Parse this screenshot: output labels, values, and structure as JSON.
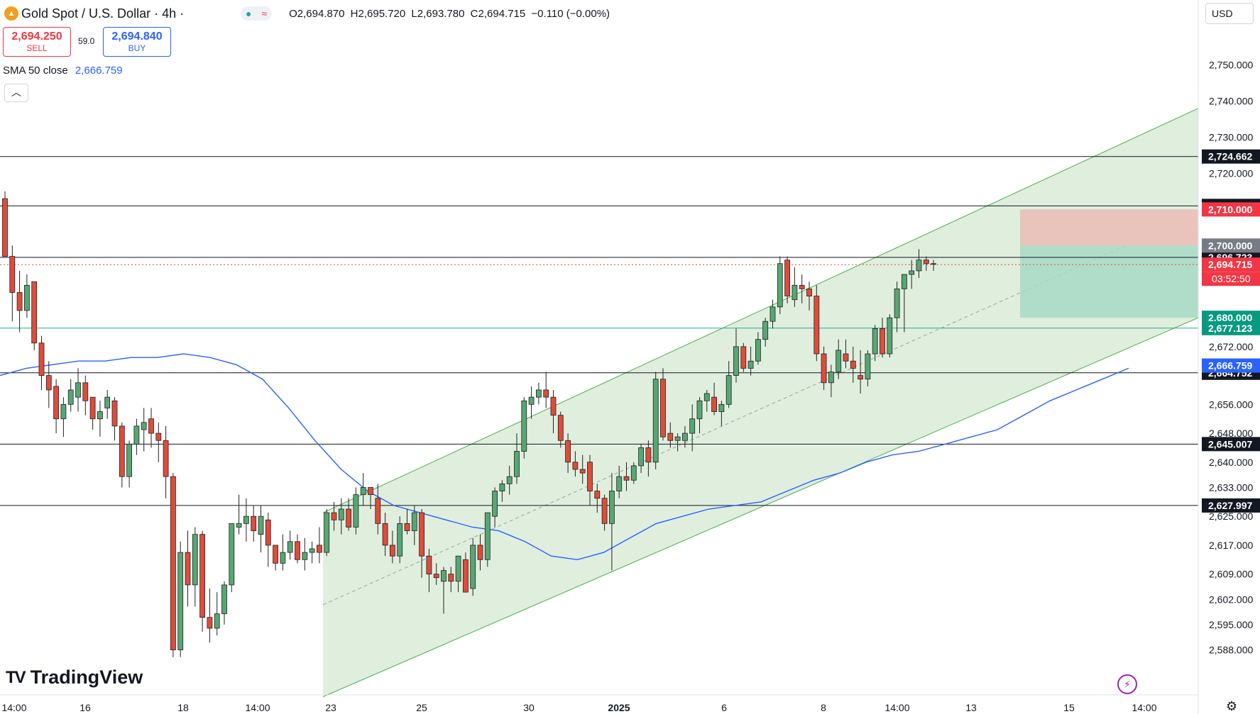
{
  "header": {
    "symbol_title": "Gold Spot / U.S. Dollar · 4h ·",
    "ohlc": {
      "o": "O2,694.870",
      "h": "H2,695.720",
      "l": "L2,693.780",
      "c": "C2,694.715",
      "chg": "−0.110 (−0.00%)"
    },
    "sell_price": "2,694.250",
    "sell_label": "SELL",
    "buy_price": "2,694.840",
    "buy_label": "BUY",
    "spread": "59.0",
    "indicator_label": "SMA 50 close",
    "indicator_value": "2,666.759",
    "currency": "USD",
    "brand": "TradingView",
    "brand_mark": "TV"
  },
  "colors": {
    "up": "#57a773",
    "down": "#e04b3a",
    "sma": "#2962ff",
    "channel_fill": "#d8ead6",
    "channel_line": "#4caf50",
    "stop_zone": "#e8c4bc",
    "target_zone": "#a6d9c6"
  },
  "chart_data": {
    "type": "candlestick",
    "timeframe": "4h",
    "y_axis": {
      "range": [
        2585,
        2760
      ],
      "ticks": [
        "2,588.000",
        "2,595.000",
        "2,602.000",
        "2,609.000",
        "2,617.000",
        "2,625.000",
        "2,633.000",
        "2,640.000",
        "2,648.000",
        "2,656.000",
        "2,672.000",
        "2,720.000",
        "2,730.000",
        "2,740.000",
        "2,750.000"
      ]
    },
    "x_axis": {
      "labels": [
        "14:00",
        "16",
        "18",
        "14:00",
        "23",
        "25",
        "30",
        "2025",
        "6",
        "8",
        "14:00",
        "13",
        "15",
        "14:00"
      ]
    },
    "horizontal_levels": [
      {
        "value": 2724.662,
        "label": "2,724.662"
      },
      {
        "value": 2710.986,
        "label": "2,710.986"
      },
      {
        "value": 2696.723,
        "label": "2,696.723"
      },
      {
        "value": 2664.752,
        "label": "2,664.752"
      },
      {
        "value": 2645.007,
        "label": "2,645.007"
      },
      {
        "value": 2627.997,
        "label": "2,627.997"
      }
    ],
    "marker_labels": [
      {
        "value": 2710.0,
        "label": "2,710.000",
        "style": "stop"
      },
      {
        "value": 2700.0,
        "label": "2,700.000",
        "style": "entry"
      },
      {
        "value": 2694.715,
        "label": "2,694.715",
        "style": "price",
        "countdown": "03:52:50"
      },
      {
        "value": 2680.0,
        "label": "2,680.000",
        "style": "target"
      },
      {
        "value": 2677.123,
        "label": "2,677.123",
        "style": "target"
      },
      {
        "value": 2666.759,
        "label": "2,666.759",
        "style": "sma"
      }
    ],
    "sma50": [
      2664,
      2666,
      2667,
      2668,
      2668,
      2669,
      2669,
      2670,
      2669,
      2667,
      2663,
      2655,
      2646,
      2638,
      2632,
      2628,
      2626,
      2624,
      2622,
      2621,
      2618,
      2614,
      2613,
      2615,
      2619,
      2623,
      2625,
      2627,
      2628,
      2629,
      2632,
      2635,
      2637,
      2640,
      2642,
      2643,
      2645,
      2647,
      2649,
      2653,
      2657,
      2660,
      2663,
      2666
    ],
    "candles": [
      [
        2713,
        2715,
        2697,
        2697
      ],
      [
        2697,
        2700,
        2679,
        2687
      ],
      [
        2687,
        2693,
        2676,
        2682
      ],
      [
        2682,
        2692,
        2680,
        2689
      ],
      [
        2690,
        2690,
        2671,
        2673
      ],
      [
        2673,
        2675,
        2660,
        2664
      ],
      [
        2664,
        2668,
        2655,
        2660
      ],
      [
        2661,
        2663,
        2648,
        2652
      ],
      [
        2652,
        2658,
        2647,
        2656
      ],
      [
        2656,
        2663,
        2654,
        2660
      ],
      [
        2658,
        2666,
        2654,
        2662
      ],
      [
        2662,
        2664,
        2653,
        2657
      ],
      [
        2658,
        2658,
        2649,
        2652
      ],
      [
        2652,
        2657,
        2647,
        2654
      ],
      [
        2655,
        2660,
        2652,
        2658
      ],
      [
        2657,
        2658,
        2646,
        2650
      ],
      [
        2650,
        2651,
        2633,
        2636
      ],
      [
        2636,
        2646,
        2633,
        2645
      ],
      [
        2645,
        2652,
        2642,
        2650
      ],
      [
        2649,
        2655,
        2643,
        2651
      ],
      [
        2652,
        2655,
        2644,
        2648
      ],
      [
        2648,
        2651,
        2640,
        2646
      ],
      [
        2646,
        2650,
        2630,
        2636
      ],
      [
        2636,
        2637,
        2586,
        2588
      ],
      [
        2588,
        2618,
        2586,
        2615
      ],
      [
        2615,
        2621,
        2600,
        2606
      ],
      [
        2606,
        2622,
        2600,
        2620
      ],
      [
        2620,
        2621,
        2593,
        2597
      ],
      [
        2597,
        2605,
        2590,
        2594
      ],
      [
        2594,
        2604,
        2592,
        2598
      ],
      [
        2598,
        2607,
        2595,
        2606
      ],
      [
        2606,
        2623,
        2604,
        2623
      ],
      [
        2622,
        2631,
        2620,
        2623
      ],
      [
        2623,
        2630,
        2618,
        2625
      ],
      [
        2625,
        2628,
        2618,
        2621
      ],
      [
        2620,
        2628,
        2615,
        2625
      ],
      [
        2624,
        2626,
        2611,
        2617
      ],
      [
        2617,
        2617,
        2610,
        2612
      ],
      [
        2612,
        2620,
        2610,
        2615
      ],
      [
        2615,
        2621,
        2613,
        2618
      ],
      [
        2618,
        2620,
        2612,
        2613
      ],
      [
        2613,
        2619,
        2610,
        2615
      ],
      [
        2615,
        2618,
        2612,
        2616
      ],
      [
        2617,
        2622,
        2612,
        2615
      ],
      [
        2615,
        2627,
        2614,
        2626
      ],
      [
        2626,
        2629,
        2621,
        2624
      ],
      [
        2624,
        2630,
        2620,
        2627
      ],
      [
        2627,
        2630,
        2621,
        2622
      ],
      [
        2622,
        2633,
        2620,
        2631
      ],
      [
        2631,
        2637,
        2628,
        2633
      ],
      [
        2633,
        2633,
        2627,
        2631
      ],
      [
        2630,
        2634,
        2620,
        2623
      ],
      [
        2623,
        2626,
        2614,
        2617
      ],
      [
        2617,
        2621,
        2612,
        2614
      ],
      [
        2614,
        2625,
        2612,
        2623
      ],
      [
        2623,
        2627,
        2620,
        2621
      ],
      [
        2621,
        2628,
        2617,
        2626
      ],
      [
        2626,
        2627,
        2608,
        2614
      ],
      [
        2614,
        2616,
        2604,
        2609
      ],
      [
        2609,
        2612,
        2606,
        2608
      ],
      [
        2607,
        2611,
        2598,
        2610
      ],
      [
        2609,
        2611,
        2604,
        2607
      ],
      [
        2607,
        2614,
        2604,
        2614
      ],
      [
        2613,
        2615,
        2604,
        2604
      ],
      [
        2605,
        2619,
        2603,
        2617
      ],
      [
        2617,
        2620,
        2610,
        2613
      ],
      [
        2613,
        2626,
        2611,
        2626
      ],
      [
        2625,
        2633,
        2622,
        2632
      ],
      [
        2632,
        2635,
        2629,
        2634
      ],
      [
        2634,
        2639,
        2631,
        2636
      ],
      [
        2636,
        2648,
        2634,
        2643
      ],
      [
        2643,
        2658,
        2641,
        2657
      ],
      [
        2656,
        2661,
        2652,
        2658
      ],
      [
        2658,
        2662,
        2656,
        2660
      ],
      [
        2660,
        2665,
        2655,
        2658
      ],
      [
        2658,
        2660,
        2648,
        2653
      ],
      [
        2653,
        2654,
        2644,
        2646
      ],
      [
        2646,
        2648,
        2637,
        2640
      ],
      [
        2640,
        2643,
        2636,
        2638
      ],
      [
        2638,
        2642,
        2634,
        2637
      ],
      [
        2640,
        2642,
        2628,
        2632
      ],
      [
        2632,
        2634,
        2626,
        2630
      ],
      [
        2630,
        2631,
        2621,
        2623
      ],
      [
        2623,
        2637,
        2610,
        2632
      ],
      [
        2632,
        2639,
        2630,
        2636
      ],
      [
        2636,
        2640,
        2632,
        2635
      ],
      [
        2635,
        2640,
        2634,
        2639
      ],
      [
        2639,
        2645,
        2637,
        2644
      ],
      [
        2644,
        2646,
        2636,
        2640
      ],
      [
        2640,
        2665,
        2638,
        2663
      ],
      [
        2663,
        2666,
        2646,
        2647
      ],
      [
        2648,
        2651,
        2644,
        2646
      ],
      [
        2646,
        2648,
        2643,
        2647
      ],
      [
        2646,
        2650,
        2644,
        2648
      ],
      [
        2648,
        2656,
        2643,
        2652
      ],
      [
        2652,
        2658,
        2648,
        2657
      ],
      [
        2657,
        2660,
        2654,
        2659
      ],
      [
        2658,
        2662,
        2653,
        2654
      ],
      [
        2654,
        2657,
        2650,
        2656
      ],
      [
        2656,
        2668,
        2655,
        2664
      ],
      [
        2664,
        2677,
        2662,
        2672
      ],
      [
        2672,
        2673,
        2665,
        2666
      ],
      [
        2666,
        2672,
        2664,
        2668
      ],
      [
        2668,
        2676,
        2667,
        2674
      ],
      [
        2674,
        2680,
        2672,
        2679
      ],
      [
        2679,
        2685,
        2677,
        2683
      ],
      [
        2683,
        2697,
        2681,
        2695
      ],
      [
        2696,
        2697,
        2684,
        2686
      ],
      [
        2685,
        2694,
        2683,
        2689
      ],
      [
        2689,
        2692,
        2684,
        2688
      ],
      [
        2688,
        2690,
        2682,
        2686
      ],
      [
        2686,
        2689,
        2668,
        2670
      ],
      [
        2670,
        2672,
        2660,
        2662
      ],
      [
        2662,
        2667,
        2658,
        2665
      ],
      [
        2665,
        2674,
        2663,
        2671
      ],
      [
        2670,
        2674,
        2666,
        2668
      ],
      [
        2668,
        2672,
        2662,
        2666
      ],
      [
        2664,
        2671,
        2659,
        2663
      ],
      [
        2663,
        2671,
        2661,
        2670
      ],
      [
        2670,
        2678,
        2668,
        2677
      ],
      [
        2677,
        2680,
        2669,
        2670
      ],
      [
        2670,
        2681,
        2669,
        2680
      ],
      [
        2680,
        2690,
        2676,
        2688
      ],
      [
        2688,
        2692,
        2676,
        2692
      ],
      [
        2692,
        2696,
        2688,
        2693
      ],
      [
        2693,
        2699,
        2691,
        2696
      ],
      [
        2696,
        2697,
        2693,
        2695
      ],
      [
        2695,
        2696,
        2693,
        2695
      ]
    ]
  }
}
